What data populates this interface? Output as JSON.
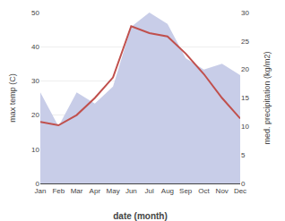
{
  "chart_data": {
    "type": "line",
    "xlabel": "date (month)",
    "ylabel": "max temp (C)",
    "y2label": "med. precipitation (kg/m2)",
    "categories": [
      "Jan",
      "Feb",
      "Mar",
      "Apr",
      "May",
      "Jun",
      "Jul",
      "Aug",
      "Sep",
      "Oct",
      "Nov",
      "Dec"
    ],
    "series": [
      {
        "type": "area",
        "color": "#c8cde8",
        "axis": "y2",
        "values": [
          16,
          10,
          16,
          14,
          17,
          27.5,
          30,
          28,
          22,
          20,
          21,
          19
        ]
      },
      {
        "type": "line",
        "color": "#c0504d",
        "values": [
          18,
          17,
          20,
          25,
          31,
          46,
          44,
          43,
          38,
          32,
          25,
          19
        ]
      }
    ],
    "ylim": [
      0,
      50
    ],
    "yticks": [
      0,
      10,
      20,
      30,
      40,
      50
    ],
    "y2lim": [
      0,
      30
    ],
    "y2ticks": [
      0,
      5,
      10,
      15,
      20,
      25,
      30
    ],
    "grid": true
  }
}
